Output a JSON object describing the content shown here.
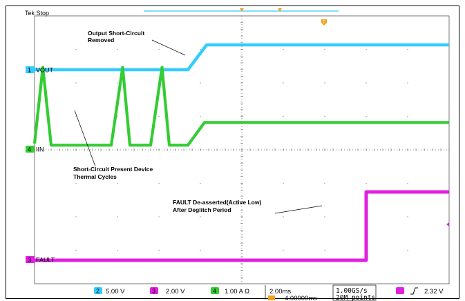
{
  "chart_data": {
    "type": "line",
    "title": "Tek Stop",
    "xlabel": "",
    "ylabel": "",
    "x_unit": "ms",
    "xlim": [
      -16,
      4
    ],
    "grid": true,
    "series": [
      {
        "name": "VOUT",
        "color": "#33ccff",
        "values": [
          {
            "x": -16,
            "y": 0
          },
          {
            "x": -8.6,
            "y": 0
          },
          {
            "x": -7.7,
            "y": 1.0
          },
          {
            "x": 4,
            "y": 1.0
          }
        ]
      },
      {
        "name": "IIN",
        "color": "#33cc33",
        "values": [
          {
            "x": -16,
            "y": 0.15
          },
          {
            "x": -15.6,
            "y": 2.5
          },
          {
            "x": -15.2,
            "y": 0.1
          },
          {
            "x": -12.3,
            "y": 0.1
          },
          {
            "x": -11.75,
            "y": 2.5
          },
          {
            "x": -11.4,
            "y": 0.1
          },
          {
            "x": -10.4,
            "y": 0.1
          },
          {
            "x": -9.85,
            "y": 2.5
          },
          {
            "x": -9.5,
            "y": 0.1
          },
          {
            "x": -8.6,
            "y": 0.1
          },
          {
            "x": -7.8,
            "y": 0.8
          },
          {
            "x": 4,
            "y": 0.8
          }
        ]
      },
      {
        "name": "FAULT",
        "color": "#e020e0",
        "values": [
          {
            "x": -16,
            "y": 0
          },
          {
            "x": 0,
            "y": 0
          },
          {
            "x": 0,
            "y": 2.2
          },
          {
            "x": 4,
            "y": 2.2
          }
        ]
      }
    ],
    "annotations": [
      {
        "text": [
          "Output Short-Circuit",
          "Removed"
        ]
      },
      {
        "text": [
          "Short-Circuit Present Device",
          "Thermal Cycles"
        ]
      },
      {
        "text": [
          "FAULT De-asserted(Active Low)",
          "After Deglitch Period"
        ]
      }
    ],
    "channel_labels": [
      "VOUT",
      "IIN",
      "FAULT"
    ],
    "channel_markers": [
      "1",
      "4",
      "3"
    ]
  },
  "status_bar": {
    "ch2_num": "2",
    "ch2_scale": "5.00 V",
    "ch3_num": "3",
    "ch3_scale": "2.00 V",
    "ch4_num": "4",
    "ch4_scale": "1.00 A Ω",
    "timebase": "2.00ms",
    "delay": "4.00000ms",
    "sample_rate": "1.00GS/s",
    "record_length": "20M points",
    "trig_level": "2.32 V"
  },
  "colors": {
    "vout": "#33ccff",
    "iin": "#33cc33",
    "fault": "#e020e0",
    "trigger_marker": "#f0a020"
  }
}
